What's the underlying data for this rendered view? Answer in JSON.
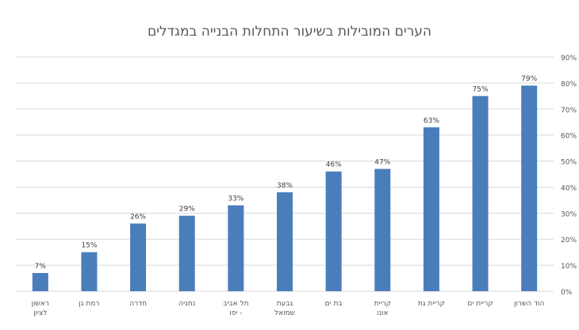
{
  "chart_data": {
    "type": "bar",
    "title": "הערים המובילות בשיעור התחלות הבנייה במגדלים",
    "xlabel": "",
    "ylabel": "",
    "categories": [
      "הוד השרון",
      "קריית ים",
      "קריית גת",
      "קריית אונו",
      "בת ים",
      "גבעת שמואל",
      "תל אביב - יפו",
      "נתניה",
      "חדרה",
      "רמת גן",
      "ראשון לציון"
    ],
    "series": [
      {
        "values": [
          79,
          75,
          63,
          47,
          46,
          38,
          33,
          29,
          26,
          15,
          7
        ]
      }
    ],
    "data_labels": [
      "79%",
      "75%",
      "63%",
      "47%",
      "46%",
      "38%",
      "33%",
      "29%",
      "26%",
      "15%",
      "7%"
    ],
    "ylim": [
      0,
      90
    ],
    "yticks": [
      "0%",
      "10%",
      "20%",
      "30%",
      "40%",
      "50%",
      "60%",
      "70%",
      "80%",
      "90%"
    ],
    "y_axis_position": "right",
    "category_order": "right-to-left",
    "grid": true,
    "legend": "none",
    "bar_color": "#4a7ebb",
    "gridline_color": "#d9d9d9"
  }
}
